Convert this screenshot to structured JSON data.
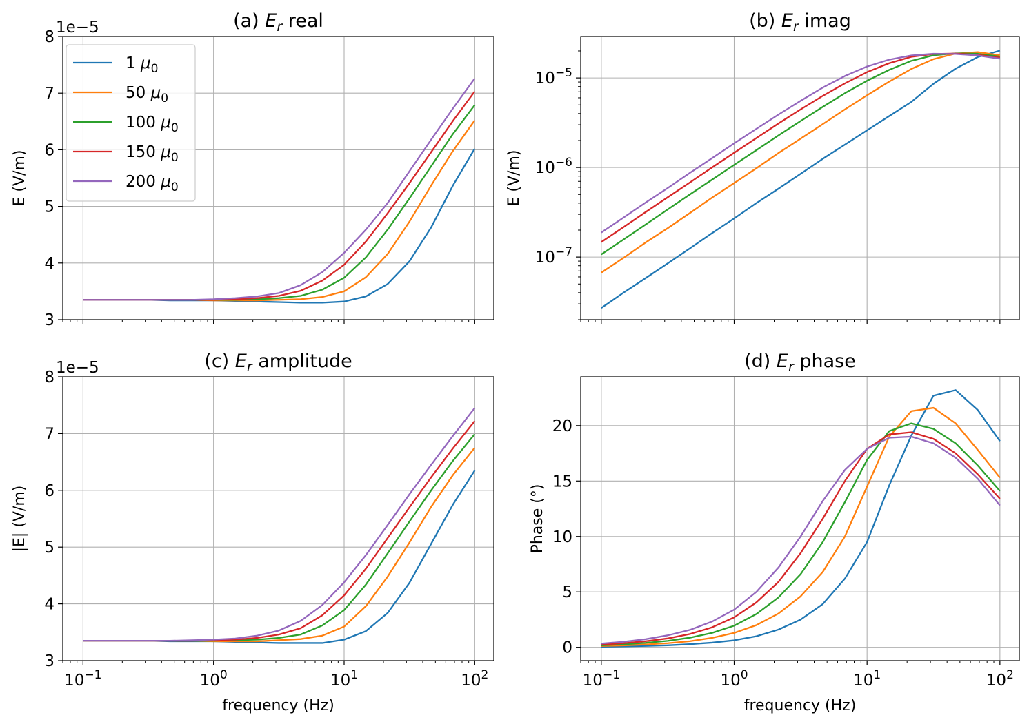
{
  "chart_data": [
    {
      "type": "line",
      "title": "(a) Er real",
      "title_text": "(a) ",
      "title_var": "E",
      "title_sub": "r",
      "title_rest": " real",
      "xlabel": "",
      "ylabel": "E (V/m)",
      "xscale": "log",
      "yscale": "linear",
      "xlim": [
        0.07,
        140
      ],
      "ylim": [
        3,
        8
      ],
      "yticks": [
        "3",
        "4",
        "5",
        "6",
        "7",
        "8"
      ],
      "offset_text": "1e−5",
      "grid": true,
      "legend": "top-left",
      "x": [
        0.1,
        0.147,
        0.215,
        0.316,
        0.464,
        0.681,
        1.0,
        1.468,
        2.154,
        3.162,
        4.642,
        6.813,
        10.0,
        14.68,
        21.54,
        31.62,
        46.42,
        68.13,
        100.0
      ],
      "series": [
        {
          "name": "1 μ0",
          "color": "#1f77b4",
          "values": [
            3.35,
            3.35,
            3.35,
            3.35,
            3.34,
            3.34,
            3.34,
            3.33,
            3.32,
            3.31,
            3.3,
            3.3,
            3.32,
            3.41,
            3.63,
            4.03,
            4.63,
            5.37,
            6.02
          ]
        },
        {
          "name": "50 μ0",
          "color": "#ff7f0e",
          "values": [
            3.35,
            3.35,
            3.35,
            3.35,
            3.35,
            3.35,
            3.34,
            3.34,
            3.34,
            3.35,
            3.36,
            3.4,
            3.5,
            3.75,
            4.16,
            4.73,
            5.37,
            5.98,
            6.52
          ]
        },
        {
          "name": "100 μ0",
          "color": "#2ca02c",
          "values": [
            3.35,
            3.35,
            3.35,
            3.35,
            3.35,
            3.35,
            3.35,
            3.35,
            3.36,
            3.38,
            3.42,
            3.53,
            3.74,
            4.1,
            4.59,
            5.14,
            5.71,
            6.28,
            6.79
          ]
        },
        {
          "name": "150 μ0",
          "color": "#d62728",
          "values": [
            3.35,
            3.35,
            3.35,
            3.35,
            3.35,
            3.35,
            3.35,
            3.36,
            3.38,
            3.42,
            3.51,
            3.69,
            3.97,
            4.38,
            4.88,
            5.41,
            5.96,
            6.51,
            7.03
          ]
        },
        {
          "name": "200 μ0",
          "color": "#9467bd",
          "values": [
            3.35,
            3.35,
            3.35,
            3.35,
            3.35,
            3.35,
            3.36,
            3.38,
            3.41,
            3.47,
            3.61,
            3.84,
            4.18,
            4.59,
            5.06,
            5.62,
            6.18,
            6.73,
            7.26
          ]
        }
      ]
    },
    {
      "type": "line",
      "title": "(b) Er imag",
      "title_text": "(b) ",
      "title_var": "E",
      "title_sub": "r",
      "title_rest": " imag",
      "xlabel": "",
      "ylabel": "E (V/m)",
      "xscale": "log",
      "yscale": "log",
      "xlim": [
        0.07,
        140
      ],
      "ylim": [
        2e-08,
        2.9e-05
      ],
      "ytick_exponents": [
        -7,
        -6,
        -5
      ],
      "grid": true,
      "x": [
        0.1,
        0.147,
        0.215,
        0.316,
        0.464,
        0.681,
        1.0,
        1.468,
        2.154,
        3.162,
        4.642,
        6.813,
        10.0,
        14.68,
        21.54,
        31.62,
        46.42,
        68.13,
        100.0
      ],
      "series": [
        {
          "name": "1 μ0",
          "color": "#1f77b4",
          "values": [
            2.7e-08,
            4e-08,
            5.8e-08,
            8.5e-08,
            1.25e-07,
            1.85e-07,
            2.7e-07,
            4e-07,
            5.8e-07,
            8.5e-07,
            1.25e-06,
            1.8e-06,
            2.6e-06,
            3.75e-06,
            5.4e-06,
            8.6e-06,
            1.27e-05,
            1.71e-05,
            2.02e-05
          ]
        },
        {
          "name": "50 μ0",
          "color": "#ff7f0e",
          "values": [
            6.7e-08,
            9.8e-08,
            1.45e-07,
            2.1e-07,
            3.1e-07,
            4.6e-07,
            6.7e-07,
            9.8e-07,
            1.45e-06,
            2.1e-06,
            3.05e-06,
            4.45e-06,
            6.4e-06,
            9.1e-06,
            1.26e-05,
            1.62e-05,
            1.87e-05,
            1.94e-05,
            1.79e-05
          ]
        },
        {
          "name": "100 μ0",
          "color": "#2ca02c",
          "values": [
            1.07e-07,
            1.57e-07,
            2.3e-07,
            3.4e-07,
            5e-07,
            7.3e-07,
            1.07e-06,
            1.56e-06,
            2.28e-06,
            3.3e-06,
            4.75e-06,
            6.75e-06,
            9.3e-06,
            1.23e-05,
            1.55e-05,
            1.79e-05,
            1.88e-05,
            1.86e-05,
            1.73e-05
          ]
        },
        {
          "name": "150 μ0",
          "color": "#d62728",
          "values": [
            1.47e-07,
            2.16e-07,
            3.17e-07,
            4.65e-07,
            6.8e-07,
            1e-06,
            1.46e-06,
            2.13e-06,
            3.1e-06,
            4.45e-06,
            6.3e-06,
            8.7e-06,
            1.16e-05,
            1.46e-05,
            1.72e-05,
            1.85e-05,
            1.87e-05,
            1.81e-05,
            1.68e-05
          ]
        },
        {
          "name": "200 μ0",
          "color": "#9467bd",
          "values": [
            1.88e-07,
            2.76e-07,
            4.05e-07,
            5.9e-07,
            8.7e-07,
            1.27e-06,
            1.86e-06,
            2.7e-06,
            3.9e-06,
            5.55e-06,
            7.8e-06,
            1.05e-05,
            1.34e-05,
            1.6e-05,
            1.78e-05,
            1.86e-05,
            1.85e-05,
            1.78e-05,
            1.64e-05
          ]
        }
      ]
    },
    {
      "type": "line",
      "title": "(c) Er amplitude",
      "title_text": "(c) ",
      "title_var": "E",
      "title_sub": "r",
      "title_rest": " amplitude",
      "xlabel": "frequency (Hz)",
      "ylabel": "|E| (V/m)",
      "xscale": "log",
      "yscale": "linear",
      "xlim": [
        0.07,
        140
      ],
      "ylim": [
        3,
        8
      ],
      "yticks": [
        "3",
        "4",
        "5",
        "6",
        "7",
        "8"
      ],
      "offset_text": "1e−5",
      "grid": true,
      "x": [
        0.1,
        0.147,
        0.215,
        0.316,
        0.464,
        0.681,
        1.0,
        1.468,
        2.154,
        3.162,
        4.642,
        6.813,
        10.0,
        14.68,
        21.54,
        31.62,
        46.42,
        68.13,
        100.0
      ],
      "series": [
        {
          "name": "1 μ0",
          "color": "#1f77b4",
          "values": [
            3.35,
            3.35,
            3.35,
            3.35,
            3.34,
            3.34,
            3.34,
            3.33,
            3.32,
            3.31,
            3.31,
            3.31,
            3.37,
            3.52,
            3.84,
            4.37,
            5.06,
            5.75,
            6.35
          ]
        },
        {
          "name": "50 μ0",
          "color": "#ff7f0e",
          "values": [
            3.35,
            3.35,
            3.35,
            3.35,
            3.35,
            3.35,
            3.34,
            3.34,
            3.34,
            3.36,
            3.38,
            3.44,
            3.6,
            3.96,
            4.48,
            5.08,
            5.71,
            6.27,
            6.75
          ]
        },
        {
          "name": "100 μ0",
          "color": "#2ca02c",
          "values": [
            3.35,
            3.35,
            3.35,
            3.35,
            3.35,
            3.35,
            3.35,
            3.36,
            3.37,
            3.4,
            3.46,
            3.62,
            3.89,
            4.34,
            4.89,
            5.45,
            6.0,
            6.52,
            6.99
          ]
        },
        {
          "name": "150 μ0",
          "color": "#d62728",
          "values": [
            3.35,
            3.35,
            3.35,
            3.35,
            3.35,
            3.35,
            3.36,
            3.37,
            3.4,
            3.46,
            3.57,
            3.8,
            4.15,
            4.62,
            5.16,
            5.7,
            6.23,
            6.74,
            7.22
          ]
        },
        {
          "name": "200 μ0",
          "color": "#9467bd",
          "values": [
            3.35,
            3.35,
            3.35,
            3.35,
            3.35,
            3.36,
            3.37,
            3.39,
            3.44,
            3.53,
            3.7,
            3.98,
            4.38,
            4.86,
            5.39,
            5.93,
            6.45,
            6.96,
            7.45
          ]
        }
      ]
    },
    {
      "type": "line",
      "title": "(d) Er phase",
      "title_text": "(d) ",
      "title_var": "E",
      "title_sub": "r",
      "title_rest": " phase",
      "xlabel": "frequency (Hz)",
      "ylabel": "Phase (°)",
      "xscale": "log",
      "yscale": "linear",
      "xlim": [
        0.07,
        140
      ],
      "ylim": [
        -1.2,
        24.4
      ],
      "yticks": [
        "0",
        "5",
        "10",
        "15",
        "20"
      ],
      "grid": true,
      "x": [
        0.1,
        0.147,
        0.215,
        0.316,
        0.464,
        0.681,
        1.0,
        1.468,
        2.154,
        3.162,
        4.642,
        6.813,
        10.0,
        14.68,
        21.54,
        31.62,
        46.42,
        68.13,
        100.0
      ],
      "series": [
        {
          "name": "1 μ0",
          "color": "#1f77b4",
          "values": [
            0.05,
            0.08,
            0.12,
            0.18,
            0.28,
            0.42,
            0.63,
            1.0,
            1.6,
            2.5,
            3.9,
            6.2,
            9.5,
            14.6,
            19.1,
            22.7,
            23.2,
            21.4,
            18.6
          ]
        },
        {
          "name": "50 μ0",
          "color": "#ff7f0e",
          "values": [
            0.12,
            0.17,
            0.25,
            0.37,
            0.55,
            0.85,
            1.3,
            2.0,
            3.05,
            4.6,
            6.8,
            10.0,
            14.5,
            19.0,
            21.3,
            21.6,
            20.2,
            17.8,
            15.3
          ]
        },
        {
          "name": "100 μ0",
          "color": "#2ca02c",
          "values": [
            0.18,
            0.27,
            0.4,
            0.58,
            0.87,
            1.3,
            1.95,
            3.0,
            4.5,
            6.6,
            9.5,
            13.1,
            16.9,
            19.5,
            20.2,
            19.7,
            18.4,
            16.4,
            14.1
          ]
        },
        {
          "name": "150 μ0",
          "color": "#d62728",
          "values": [
            0.25,
            0.37,
            0.55,
            0.8,
            1.2,
            1.8,
            2.7,
            4.05,
            5.9,
            8.5,
            11.6,
            15.0,
            17.9,
            19.2,
            19.4,
            18.8,
            17.5,
            15.6,
            13.4
          ]
        },
        {
          "name": "200 μ0",
          "color": "#9467bd",
          "values": [
            0.34,
            0.5,
            0.73,
            1.08,
            1.57,
            2.32,
            3.4,
            5.0,
            7.2,
            10.0,
            13.2,
            16.0,
            17.9,
            18.9,
            19.0,
            18.4,
            17.1,
            15.2,
            12.8
          ]
        }
      ]
    }
  ],
  "legend": {
    "items": [
      {
        "num": "1 ",
        "mu": "μ",
        "sub": "0",
        "color": "#1f77b4"
      },
      {
        "num": "50 ",
        "mu": "μ",
        "sub": "0",
        "color": "#ff7f0e"
      },
      {
        "num": "100 ",
        "mu": "μ",
        "sub": "0",
        "color": "#2ca02c"
      },
      {
        "num": "150 ",
        "mu": "μ",
        "sub": "0",
        "color": "#d62728"
      },
      {
        "num": "200 ",
        "mu": "μ",
        "sub": "0",
        "color": "#9467bd"
      }
    ]
  },
  "x_axis": {
    "tick_base": "10",
    "tick_exponents": [
      "−1",
      "0",
      "1",
      "2"
    ],
    "tick_values": [
      0.1,
      1,
      10,
      100
    ]
  }
}
